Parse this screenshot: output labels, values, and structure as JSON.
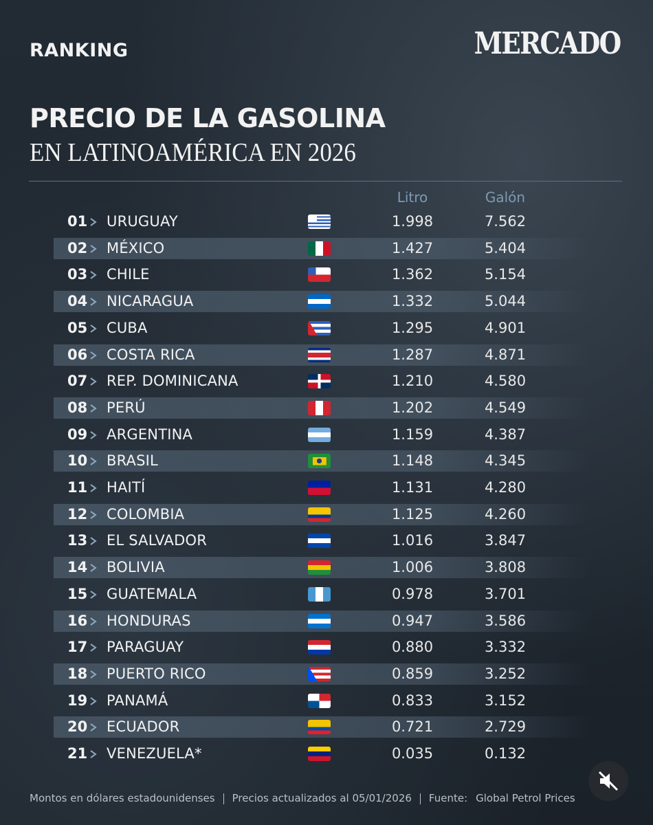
{
  "header": {
    "kicker": "RANKING",
    "brand": "MERCADO",
    "title": "PRECIO DE LA GASOLINA",
    "subtitle": "EN LATINOAMÉRICA EN 2026"
  },
  "table": {
    "columns": [
      "Litro",
      "Galón"
    ],
    "rows": [
      [
        "01",
        "URUGUAY",
        "1.998",
        "7.562"
      ],
      [
        "02",
        "MÉXICO",
        "1.427",
        "5.404"
      ],
      [
        "03",
        "CHILE",
        "1.362",
        "5.154"
      ],
      [
        "04",
        "NICARAGUA",
        "1.332",
        "5.044"
      ],
      [
        "05",
        "CUBA",
        "1.295",
        "4.901"
      ],
      [
        "06",
        "COSTA RICA",
        "1.287",
        "4.871"
      ],
      [
        "07",
        "REP. DOMINICANA",
        "1.210",
        "4.580"
      ],
      [
        "08",
        "PERÚ",
        "1.202",
        "4.549"
      ],
      [
        "09",
        "ARGENTINA",
        "1.159",
        "4.387"
      ],
      [
        "10",
        "BRASIL",
        "1.148",
        "4.345"
      ],
      [
        "11",
        "HAITÍ",
        "1.131",
        "4.280"
      ],
      [
        "12",
        "COLOMBIA",
        "1.125",
        "4.260"
      ],
      [
        "13",
        "EL SALVADOR",
        "1.016",
        "3.847"
      ],
      [
        "14",
        "BOLIVIA",
        "1.006",
        "3.808"
      ],
      [
        "15",
        "GUATEMALA",
        "0.978",
        "3.701"
      ],
      [
        "16",
        "HONDURAS",
        "0.947",
        "3.586"
      ],
      [
        "17",
        "PARAGUAY",
        "0.880",
        "3.332"
      ],
      [
        "18",
        "PUERTO RICO",
        "0.859",
        "3.252"
      ],
      [
        "19",
        "PANAMÁ",
        "0.833",
        "3.152"
      ],
      [
        "20",
        "ECUADOR",
        "0.721",
        "2.729"
      ],
      [
        "21",
        "VENEZUELA*",
        "0.035",
        "0.132"
      ]
    ]
  },
  "footer": {
    "note": "Montos en dólares estadounidenses",
    "updated": "Precios actualizados al 05/01/2026",
    "source_label": "Fuente:",
    "source": "Global Petrol Prices"
  }
}
